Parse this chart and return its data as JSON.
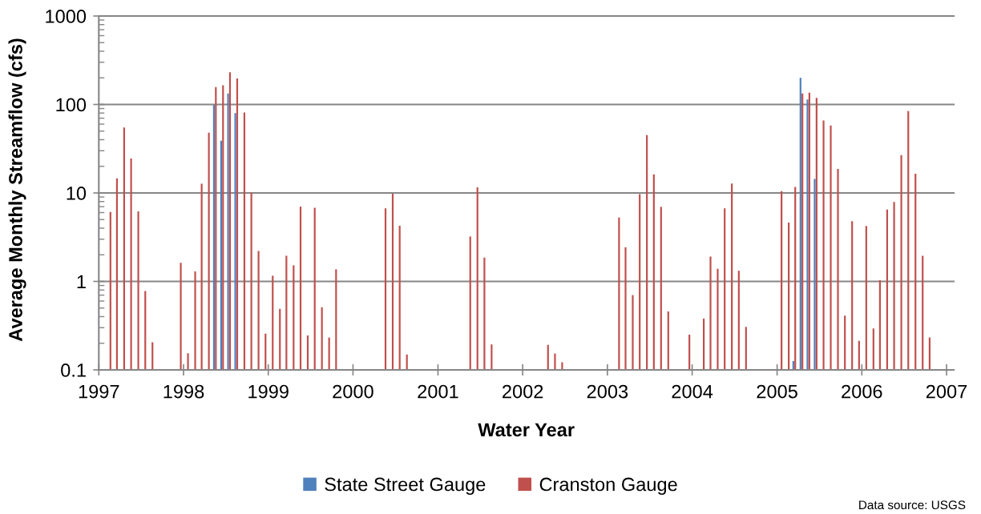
{
  "chart_data": {
    "type": "bar",
    "xlabel": "Water Year",
    "ylabel": "Average Monthly Streamflow (cfs)",
    "annotations": [
      "Data source: USGS"
    ],
    "log": "y",
    "grid": "y",
    "legend": "bottom",
    "xlim": [
      "1997",
      "2007-02"
    ],
    "xticks": [
      "1997",
      "1998",
      "1999",
      "2000",
      "2001",
      "2002",
      "2003",
      "2004",
      "2005",
      "2006",
      "2007"
    ],
    "ylim": [
      0.1,
      1000
    ],
    "yticks": [
      0.1,
      1,
      10,
      100,
      1000,
      {
        "value": 0.2,
        "label": null
      },
      {
        "value": 0.3,
        "label": null
      },
      {
        "value": 0.4,
        "label": null
      },
      {
        "value": 0.5,
        "label": null
      },
      {
        "value": 0.6,
        "label": null
      },
      {
        "value": 0.7,
        "label": null
      },
      {
        "value": 0.8,
        "label": null
      },
      {
        "value": 0.9,
        "label": null
      },
      {
        "value": 2,
        "label": null
      },
      {
        "value": 3,
        "label": null
      },
      {
        "value": 4,
        "label": null
      },
      {
        "value": 5,
        "label": null
      },
      {
        "value": 6,
        "label": null
      },
      {
        "value": 7,
        "label": null
      },
      {
        "value": 8,
        "label": null
      },
      {
        "value": 9,
        "label": null
      },
      {
        "value": 20,
        "label": null
      },
      {
        "value": 30,
        "label": null
      },
      {
        "value": 40,
        "label": null
      },
      {
        "value": 50,
        "label": null
      },
      {
        "value": 60,
        "label": null
      },
      {
        "value": 70,
        "label": null
      },
      {
        "value": 80,
        "label": null
      },
      {
        "value": 90,
        "label": null
      },
      {
        "value": 200,
        "label": null
      },
      {
        "value": 300,
        "label": null
      },
      {
        "value": 400,
        "label": null
      },
      {
        "value": 500,
        "label": null
      },
      {
        "value": 600,
        "label": null
      },
      {
        "value": 700,
        "label": null
      },
      {
        "value": 800,
        "label": null
      },
      {
        "value": 900,
        "label": null
      }
    ],
    "x": [
      "1997-02-16",
      "1997-03-16",
      "1997-04-16",
      "1997-05-16",
      "1997-06-16",
      "1997-07-16",
      "1997-08-16",
      "1997-09-16",
      "1997-10-16",
      "1997-11-16",
      "1997-12-16",
      "1998-01-16",
      "1998-02-16",
      "1998-03-16",
      "1998-04-16",
      "1998-05-16",
      "1998-06-16",
      "1998-07-16",
      "1998-08-16",
      "1998-09-16",
      "1998-10-16",
      "1998-11-16",
      "1998-12-16",
      "1999-01-16",
      "1999-02-16",
      "1999-03-16",
      "1999-04-16",
      "1999-05-16",
      "1999-06-16",
      "1999-07-16",
      "1999-08-16",
      "1999-09-16",
      "1999-10-16",
      "1999-11-16",
      "1999-12-16",
      "2000-01-16",
      "2000-02-16",
      "2000-03-16",
      "2000-04-16",
      "2000-05-16",
      "2000-06-16",
      "2000-07-16",
      "2000-08-16",
      "2000-09-16",
      "2000-10-16",
      "2000-11-16",
      "2000-12-16",
      "2001-01-16",
      "2001-02-16",
      "2001-03-16",
      "2001-04-16",
      "2001-05-16",
      "2001-06-16",
      "2001-07-16",
      "2001-08-16",
      "2001-09-16",
      "2001-10-16",
      "2001-11-16",
      "2001-12-16",
      "2002-01-16",
      "2002-02-16",
      "2002-03-16",
      "2002-04-16",
      "2002-05-16",
      "2002-06-16",
      "2002-07-16",
      "2002-08-16",
      "2002-09-16",
      "2002-10-16",
      "2002-11-16",
      "2002-12-16",
      "2003-01-16",
      "2003-02-16",
      "2003-03-16",
      "2003-04-16",
      "2003-05-16",
      "2003-06-16",
      "2003-07-16",
      "2003-08-16",
      "2003-09-16",
      "2003-10-16",
      "2003-11-16",
      "2003-12-16",
      "2004-01-16",
      "2004-02-16",
      "2004-03-16",
      "2004-04-16",
      "2004-05-16",
      "2004-06-16",
      "2004-07-16",
      "2004-08-16",
      "2004-09-16",
      "2004-10-16",
      "2004-11-16",
      "2004-12-16",
      "2005-01-16",
      "2005-02-16",
      "2005-03-16",
      "2005-04-16",
      "2005-05-16",
      "2005-06-16",
      "2005-07-16",
      "2005-08-16",
      "2005-09-16",
      "2005-10-16",
      "2005-11-16",
      "2005-12-16",
      "2006-01-16",
      "2006-02-16",
      "2006-03-16",
      "2006-04-16",
      "2006-05-16",
      "2006-06-16",
      "2006-07-16",
      "2006-08-16",
      "2006-09-16",
      "2006-10-16"
    ],
    "series": [
      {
        "name": "State Street Gauge",
        "color": "#4f81bd",
        "values": [
          null,
          null,
          null,
          null,
          null,
          null,
          null,
          null,
          null,
          null,
          null,
          null,
          null,
          null,
          null,
          99,
          39,
          133,
          80,
          null,
          null,
          null,
          null,
          null,
          null,
          null,
          null,
          null,
          null,
          null,
          null,
          null,
          null,
          null,
          null,
          null,
          null,
          null,
          null,
          null,
          null,
          null,
          null,
          null,
          null,
          null,
          null,
          null,
          null,
          null,
          null,
          null,
          null,
          null,
          null,
          null,
          null,
          null,
          null,
          null,
          null,
          null,
          null,
          null,
          null,
          null,
          null,
          null,
          null,
          null,
          null,
          null,
          null,
          null,
          null,
          null,
          null,
          null,
          null,
          null,
          null,
          null,
          null,
          null,
          null,
          null,
          null,
          null,
          null,
          null,
          null,
          null,
          null,
          null,
          null,
          null,
          null,
          0.126,
          200,
          114,
          14.4,
          null,
          null,
          null,
          null,
          null,
          null,
          null,
          null,
          null,
          null,
          null,
          null,
          null,
          null,
          null,
          null
        ]
      },
      {
        "name": "Cranston Gauge",
        "color": "#c0504d",
        "values": [
          6.1,
          14.6,
          55,
          24.5,
          6.2,
          0.78,
          0.205,
          null,
          null,
          null,
          1.62,
          0.154,
          1.3,
          12.7,
          48,
          157,
          165,
          231,
          197,
          81,
          10.1,
          2.21,
          0.257,
          1.16,
          0.49,
          1.95,
          1.52,
          7.0,
          0.245,
          6.8,
          0.51,
          0.232,
          1.37,
          null,
          null,
          null,
          null,
          null,
          null,
          6.7,
          9.8,
          4.26,
          0.149,
          null,
          null,
          null,
          null,
          null,
          null,
          null,
          null,
          3.22,
          11.6,
          1.86,
          0.194,
          null,
          null,
          null,
          null,
          null,
          null,
          null,
          0.192,
          0.153,
          0.122,
          null,
          null,
          null,
          null,
          null,
          null,
          null,
          5.28,
          2.43,
          0.7,
          9.7,
          45,
          16.2,
          6.97,
          0.458,
          null,
          null,
          0.25,
          null,
          0.38,
          1.91,
          1.39,
          6.7,
          12.8,
          1.32,
          0.306,
          null,
          null,
          null,
          null,
          10.5,
          4.63,
          11.7,
          133,
          136,
          119,
          66,
          58,
          18.7,
          0.41,
          4.79,
          0.213,
          4.23,
          0.294,
          1.03,
          6.5,
          7.9,
          26.8,
          84,
          16.5,
          1.95,
          0.233
        ]
      }
    ]
  }
}
